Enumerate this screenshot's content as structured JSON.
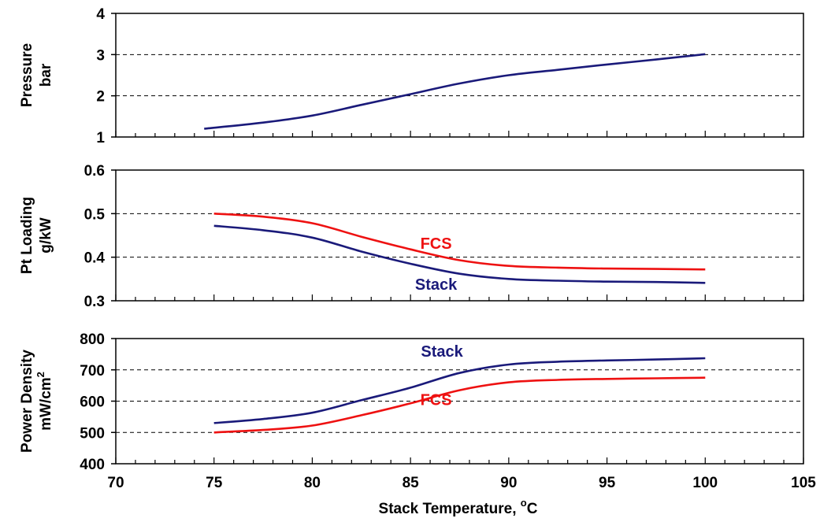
{
  "chart_data": [
    {
      "type": "line",
      "ylabel": [
        "Pressure",
        "bar"
      ],
      "ylim": [
        1,
        4
      ],
      "yticks": [
        "1",
        "2",
        "3",
        "4"
      ],
      "xlim": [
        70,
        105
      ],
      "grid": "dashed horizontal at 2 and 3",
      "series": [
        {
          "color": "#1a1a7a",
          "x": [
            74.5,
            77.5,
            80,
            82.5,
            85,
            87.5,
            90,
            92.5,
            95,
            97.5,
            100
          ],
          "y": [
            1.2,
            1.35,
            1.52,
            1.78,
            2.04,
            2.3,
            2.5,
            2.63,
            2.76,
            2.88,
            3.01
          ]
        }
      ]
    },
    {
      "type": "line",
      "ylabel": [
        "Pt Loading",
        "g/kW"
      ],
      "ylim": [
        0.3,
        0.6
      ],
      "yticks": [
        "0.3",
        "0.4",
        "0.5",
        "0.6"
      ],
      "xlim": [
        70,
        105
      ],
      "grid": "dashed horizontal at 0.4 and 0.5",
      "series": [
        {
          "name": "FCS",
          "color": "#ee1111",
          "x": [
            75,
            77.5,
            80,
            82.5,
            85,
            87.5,
            90,
            92.5,
            95,
            97.5,
            100
          ],
          "y": [
            0.5,
            0.493,
            0.478,
            0.447,
            0.418,
            0.393,
            0.38,
            0.376,
            0.374,
            0.373,
            0.372
          ]
        },
        {
          "name": "Stack",
          "color": "#1a1a7a",
          "x": [
            75,
            77.5,
            80,
            82.5,
            85,
            87.5,
            90,
            92.5,
            95,
            97.5,
            100
          ],
          "y": [
            0.472,
            0.462,
            0.445,
            0.413,
            0.385,
            0.362,
            0.35,
            0.346,
            0.344,
            0.343,
            0.341
          ]
        }
      ],
      "annotations": [
        {
          "text": "FCS",
          "color": "#ee1111",
          "x": 86.3,
          "y": 0.419
        },
        {
          "text": "Stack",
          "color": "#1a1a7a",
          "x": 86.3,
          "y": 0.325
        }
      ]
    },
    {
      "type": "line",
      "ylabel": [
        "Power Density",
        "mW/cm",
        "2"
      ],
      "ylim": [
        400,
        800
      ],
      "yticks": [
        "400",
        "500",
        "600",
        "700",
        "800"
      ],
      "xlim": [
        70,
        105
      ],
      "xticks": [
        "70",
        "75",
        "80",
        "85",
        "90",
        "95",
        "100",
        "105"
      ],
      "xlabel": [
        "Stack Temperature, ",
        "o",
        "C"
      ],
      "grid": "dashed horizontal at 500, 600 and 700",
      "series": [
        {
          "name": "Stack",
          "color": "#1a1a7a",
          "x": [
            75,
            77.5,
            80,
            82.5,
            85,
            87.5,
            90,
            92.5,
            95,
            97.5,
            100
          ],
          "y": [
            530,
            543,
            563,
            603,
            643,
            690,
            717,
            726,
            730,
            733,
            737
          ]
        },
        {
          "name": "FCS",
          "color": "#ee1111",
          "x": [
            75,
            77.5,
            80,
            82.5,
            85,
            87.5,
            90,
            92.5,
            95,
            97.5,
            100
          ],
          "y": [
            500,
            508,
            522,
            555,
            593,
            635,
            660,
            668,
            671,
            673,
            675
          ]
        }
      ],
      "annotations": [
        {
          "text": "Stack",
          "color": "#1a1a7a",
          "x": 86.6,
          "y": 742
        },
        {
          "text": "FCS",
          "color": "#ee1111",
          "x": 86.3,
          "y": 587
        }
      ]
    }
  ]
}
